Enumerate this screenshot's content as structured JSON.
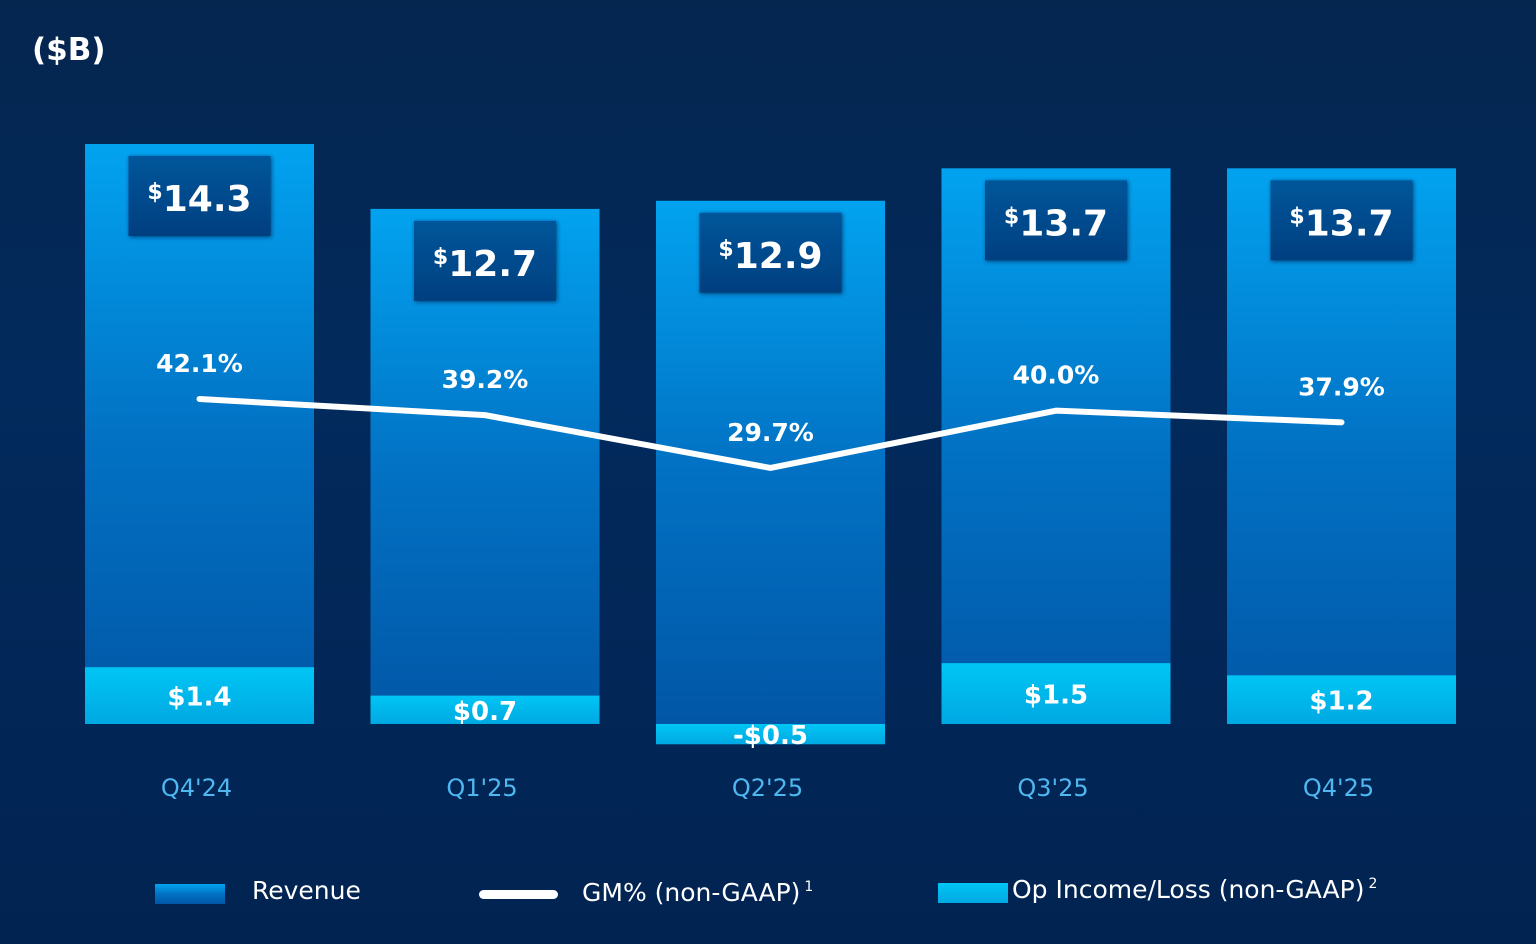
{
  "chart_data": {
    "type": "bar",
    "title": "($B)",
    "categories": [
      "Q4'24",
      "Q1'25",
      "Q2'25",
      "Q3'25",
      "Q4'25"
    ],
    "series": [
      {
        "name": "Revenue",
        "type": "bar",
        "values": [
          14.3,
          12.7,
          12.9,
          13.7,
          13.7
        ],
        "labels": [
          "$14.3",
          "$12.7",
          "$12.9",
          "$13.7",
          "$13.7"
        ],
        "color": "#0a8fe0"
      },
      {
        "name": "GM% (non-GAAP)",
        "superscript": "1",
        "type": "line",
        "values": [
          42.1,
          39.2,
          29.7,
          40.0,
          37.9
        ],
        "labels": [
          "42.1%",
          "39.2%",
          "29.7%",
          "40.0%",
          "37.9%"
        ],
        "color": "#ffffff"
      },
      {
        "name": "Op Income/Loss (non-GAAP)",
        "superscript": "2",
        "type": "bar",
        "values": [
          1.4,
          0.7,
          -0.5,
          1.5,
          1.2
        ],
        "labels": [
          "$1.4",
          "$0.7",
          "-$0.5",
          "$1.5",
          "$1.2"
        ],
        "color": "#00c0f0"
      }
    ],
    "legend": "bottom",
    "grid": false,
    "tick_color": "#4fb8f0"
  }
}
